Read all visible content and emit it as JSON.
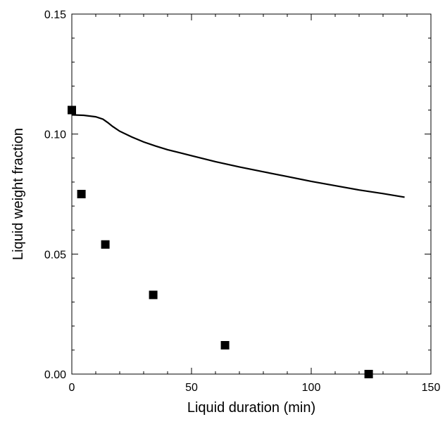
{
  "chart_data": {
    "type": "line",
    "title": "",
    "xlabel": "Liquid duration (min)",
    "ylabel": "Liquid weight fraction",
    "xlim": [
      0,
      150
    ],
    "ylim": [
      0,
      0.15
    ],
    "x_ticks": [
      0,
      50,
      100,
      150
    ],
    "x_tick_labels": [
      "0",
      "50",
      "100",
      "150"
    ],
    "y_ticks": [
      0,
      0.05,
      0.1,
      0.15
    ],
    "y_tick_labels": [
      "0.00",
      "0.05",
      "0.10",
      "0.15"
    ],
    "grid": false,
    "legend": "none",
    "series": [
      {
        "kind": "line",
        "color": "#000000",
        "x": [
          0,
          5,
          10,
          13,
          15,
          17,
          20,
          25,
          30,
          35,
          40,
          50,
          60,
          70,
          80,
          90,
          100,
          110,
          120,
          130,
          139
        ],
        "y": [
          0.108,
          0.1078,
          0.1072,
          0.1062,
          0.1048,
          0.1032,
          0.1012,
          0.0988,
          0.0967,
          0.095,
          0.0935,
          0.091,
          0.0885,
          0.0863,
          0.0843,
          0.0823,
          0.0803,
          0.0785,
          0.0767,
          0.0752,
          0.0737
        ]
      },
      {
        "kind": "scatter",
        "marker": "square",
        "color": "#000000",
        "x": [
          0,
          4,
          14,
          34,
          64,
          124
        ],
        "y": [
          0.11,
          0.075,
          0.054,
          0.033,
          0.012,
          0.0
        ]
      }
    ]
  }
}
